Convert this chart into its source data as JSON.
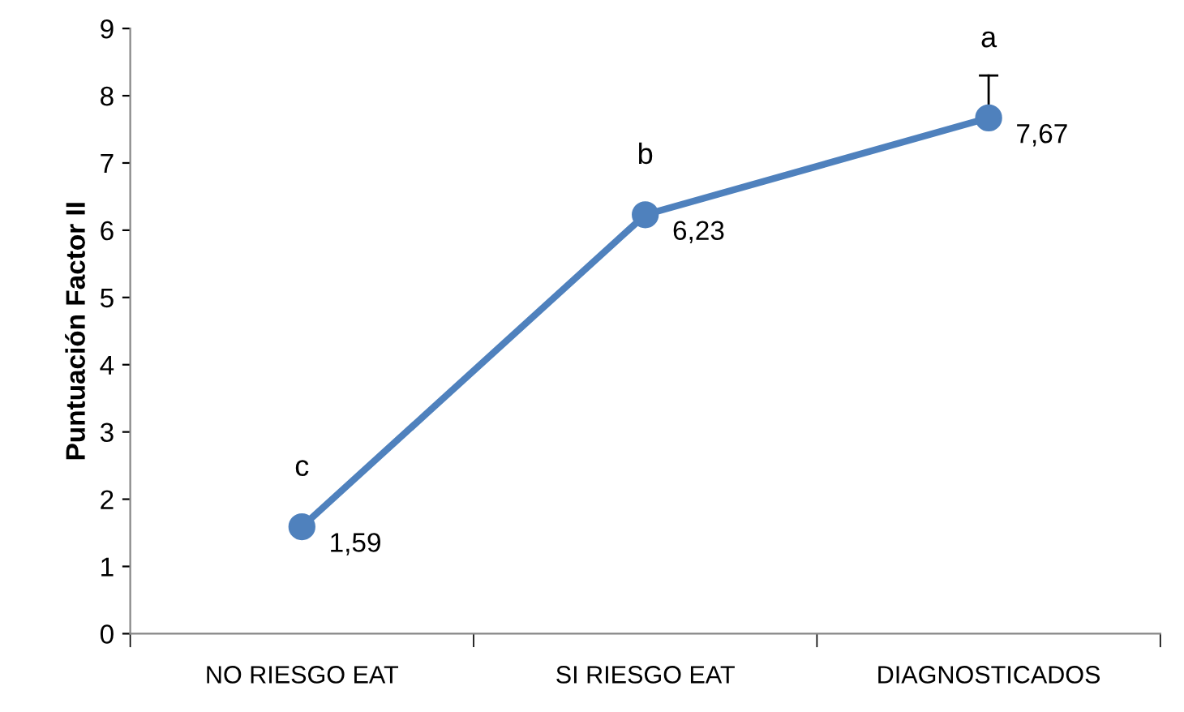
{
  "chart_data": {
    "type": "line",
    "ylabel": "Puntuación Factor II",
    "categories": [
      "NO RIESGO EAT",
      "SI RIESGO EAT",
      "DIAGNOSTICADOS"
    ],
    "series": [
      {
        "color": "#4f81bd",
        "values": [
          1.59,
          6.23,
          7.67
        ],
        "value_labels": [
          "1,59",
          "6,23",
          "7,67"
        ],
        "errors": [
          null,
          null,
          [
            7.67,
            8.3
          ]
        ]
      }
    ],
    "ylim": [
      0,
      9
    ],
    "yticks": [
      0,
      1,
      2,
      3,
      4,
      5,
      6,
      7,
      8,
      9
    ],
    "grid": false,
    "legend": false,
    "marker": "circle",
    "line_style": "solid",
    "annotations": [
      "c",
      "b",
      "a"
    ]
  }
}
